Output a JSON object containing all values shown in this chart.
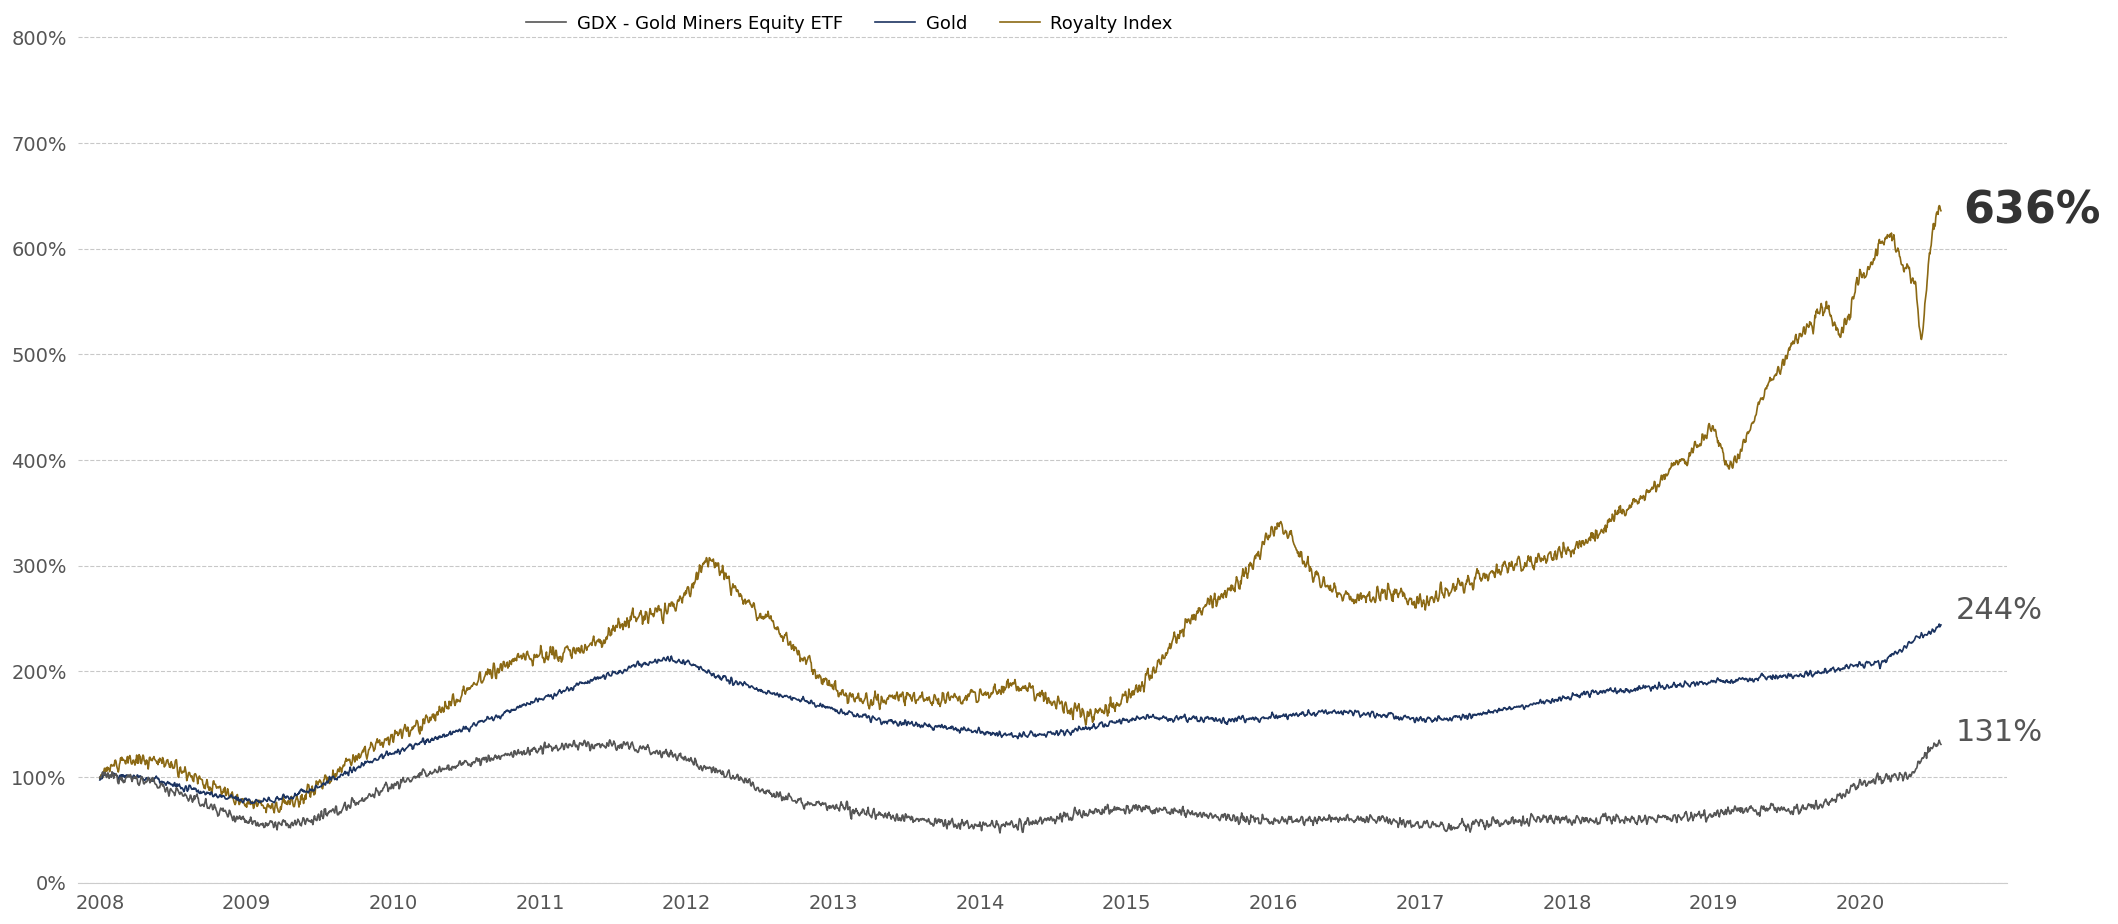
{
  "gdx_color": "#555555",
  "gold_color": "#1c3461",
  "royalty_color": "#8B6914",
  "background_color": "#ffffff",
  "grid_color": "#bbbbbb",
  "ylim": [
    0,
    820
  ],
  "yticks": [
    0,
    100,
    200,
    300,
    400,
    500,
    600,
    700,
    800
  ],
  "ytick_labels": [
    "0%",
    "100%",
    "200%",
    "300%",
    "400%",
    "500%",
    "600%",
    "700%",
    "800%"
  ],
  "xtick_labels": [
    "2008",
    "2009",
    "2010",
    "2011",
    "2012",
    "2013",
    "2014",
    "2015",
    "2016",
    "2017",
    "2018",
    "2019",
    "2020"
  ],
  "legend_labels": [
    "GDX - Gold Miners Equity ETF",
    "Gold",
    "Royalty Index"
  ],
  "annotation_636": "636%",
  "annotation_244": "244%",
  "annotation_131": "131%",
  "line_width": 1.2
}
